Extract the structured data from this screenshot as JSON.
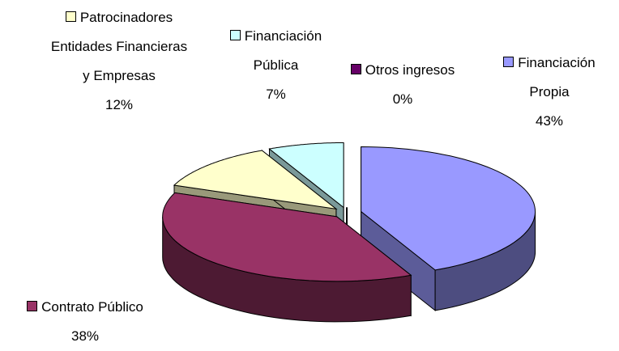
{
  "chart_data": {
    "type": "pie3d",
    "categories": [
      "Financiación Propia",
      "Contrato Público",
      "Patrocinadores Entidades Financieras y Empresas",
      "Financiación Pública",
      "Otros ingresos"
    ],
    "values": [
      43,
      38,
      12,
      7,
      0
    ],
    "value_labels": [
      "43%",
      "38%",
      "12%",
      "7%",
      "0%"
    ],
    "colors": [
      "#9999ff",
      "#993366",
      "#ffffcc",
      "#ccffff",
      "#660066"
    ]
  }
}
